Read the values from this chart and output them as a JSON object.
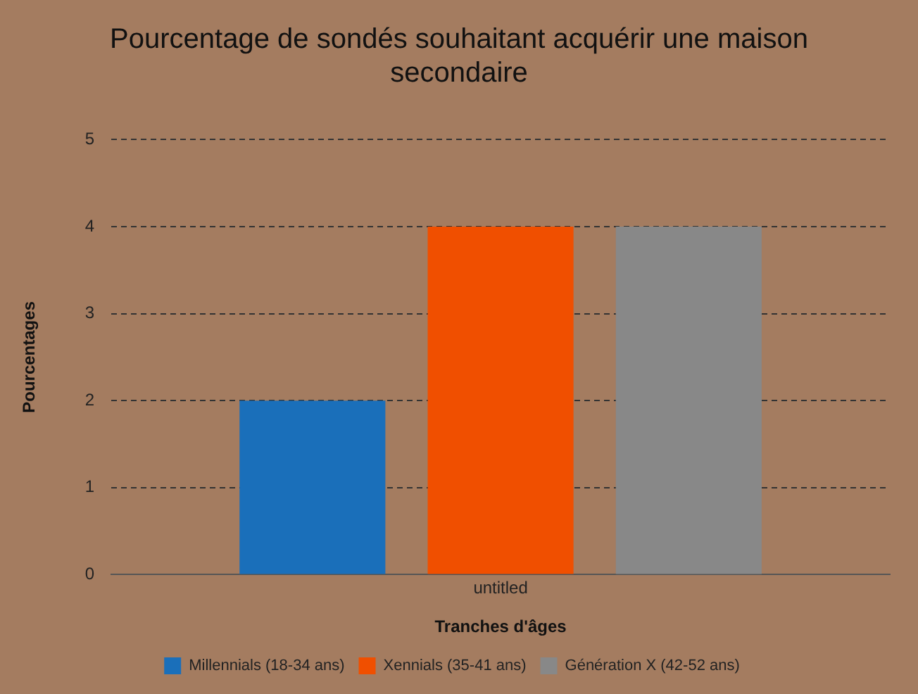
{
  "chart_data": {
    "type": "bar",
    "title": "Pourcentage de sondés souhaitant acquérir une maison secondaire",
    "xlabel": "Tranches d'âges",
    "ylabel": "Pourcentages",
    "categories": [
      "untitled"
    ],
    "series": [
      {
        "name": "Millennials (18-34 ans)",
        "color": "#1a6fba",
        "values": [
          2
        ]
      },
      {
        "name": "Xennials (35-41 ans)",
        "color": "#f04f00",
        "values": [
          4
        ]
      },
      {
        "name": "Génération X (42-52 ans)",
        "color": "#888888",
        "values": [
          4
        ]
      }
    ],
    "ylim": [
      0,
      5
    ],
    "yticks": [
      0,
      1,
      2,
      3,
      4,
      5
    ],
    "grid": "y",
    "legend": "bottom"
  }
}
